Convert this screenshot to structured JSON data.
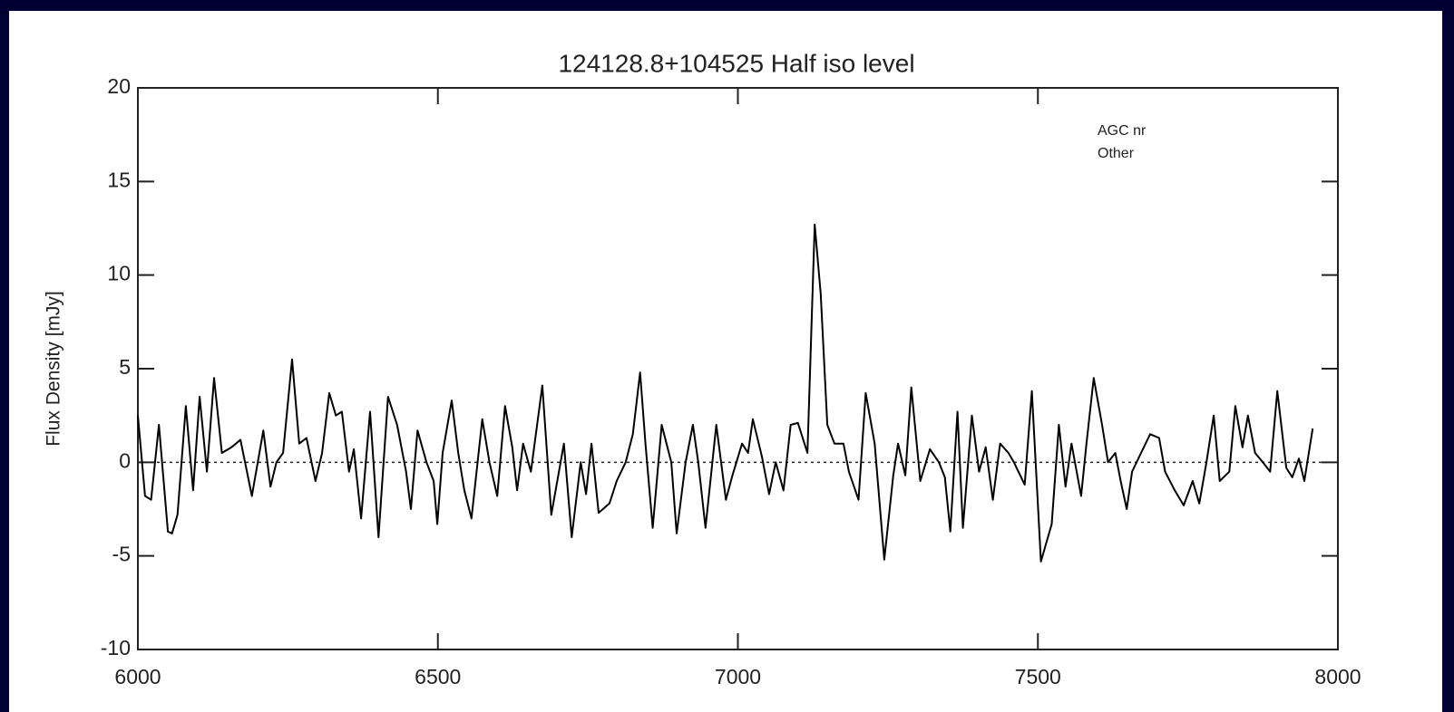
{
  "chart_data": {
    "type": "line",
    "title": "124128.8+104525    Half iso level",
    "y_label": "Flux Density [mJy]",
    "annotations": [
      "AGC nr",
      "Other"
    ],
    "color": "#000000",
    "reference_line": 0,
    "xlim": [
      6000,
      8000
    ],
    "xticks": [
      6000,
      6500,
      7000,
      7500,
      8000
    ],
    "ylim": [
      -10,
      20
    ],
    "yticks": [
      -10,
      -5,
      0,
      5,
      10,
      15,
      20
    ],
    "series": [
      {
        "name": "spectrum",
        "x": [
          6000,
          6012,
          6022,
          6035,
          6050,
          6057,
          6066,
          6080,
          6092,
          6103,
          6115,
          6127,
          6140,
          6156,
          6171,
          6190,
          6209,
          6221,
          6231,
          6242,
          6257,
          6269,
          6281,
          6296,
          6307,
          6319,
          6330,
          6340,
          6352,
          6360,
          6372,
          6387,
          6401,
          6417,
          6432,
          6447,
          6455,
          6466,
          6481,
          6493,
          6499,
          6508,
          6523,
          6534,
          6544,
          6556,
          6574,
          6586,
          6599,
          6612,
          6624,
          6632,
          6642,
          6655,
          6674,
          6689,
          6710,
          6723,
          6738,
          6747,
          6756,
          6768,
          6786,
          6798,
          6813,
          6825,
          6837,
          6846,
          6858,
          6873,
          6889,
          6898,
          6913,
          6925,
          6934,
          6946,
          6964,
          6980,
          6991,
          7007,
          7017,
          7025,
          7040,
          7052,
          7063,
          7076,
          7088,
          7100,
          7111,
          7116,
          7128,
          7138,
          7149,
          7161,
          7176,
          7185,
          7201,
          7213,
          7228,
          7244,
          7259,
          7267,
          7279,
          7289,
          7304,
          7320,
          7335,
          7345,
          7354,
          7366,
          7375,
          7390,
          7402,
          7413,
          7425,
          7437,
          7451,
          7460,
          7478,
          7490,
          7505,
          7523,
          7535,
          7546,
          7556,
          7572,
          7581,
          7593,
          7607,
          7617,
          7629,
          7638,
          7648,
          7657,
          7672,
          7687,
          7702,
          7712,
          7728,
          7743,
          7758,
          7769,
          7781,
          7793,
          7803,
          7819,
          7829,
          7841,
          7850,
          7862,
          7875,
          7887,
          7899,
          7914,
          7924,
          7935,
          7944,
          7958
        ],
        "values": [
          2.5,
          -1.8,
          -2,
          2,
          -3.7,
          -3.8,
          -2.8,
          3,
          -1.5,
          3.5,
          -0.5,
          4.5,
          0.5,
          0.8,
          1.2,
          -1.8,
          1.7,
          -1.3,
          0,
          0.5,
          5.5,
          1,
          1.3,
          -1,
          0.5,
          3.7,
          2.5,
          2.7,
          -0.5,
          0.7,
          -3,
          2.7,
          -4,
          3.5,
          2,
          -0.5,
          -2.5,
          1.7,
          0,
          -1,
          -3.3,
          0.5,
          3.3,
          0.5,
          -1.5,
          -3,
          2.3,
          0,
          -1.8,
          3,
          0.8,
          -1.5,
          1,
          -0.5,
          4.1,
          -2.8,
          1,
          -4,
          0,
          -1.7,
          1,
          -2.7,
          -2.2,
          -1,
          0,
          1.5,
          4.8,
          1,
          -3.5,
          2,
          0,
          -3.8,
          0,
          2,
          0,
          -3.5,
          2,
          -2,
          -0.7,
          1,
          0.5,
          2.3,
          0.3,
          -1.7,
          0,
          -1.5,
          2,
          2.1,
          1,
          0.5,
          12.7,
          9,
          2,
          1,
          1,
          -0.5,
          -2,
          3.7,
          1,
          -5.2,
          -0.7,
          1,
          -0.7,
          4,
          -1,
          0.7,
          0,
          -0.8,
          -3.7,
          2.7,
          -3.5,
          2.5,
          -0.5,
          0.8,
          -2,
          1,
          0.5,
          0,
          -1.2,
          3.8,
          -5.3,
          -3.3,
          2,
          -1.3,
          1,
          -1.8,
          1,
          4.5,
          2,
          0,
          0.5,
          -1,
          -2.5,
          -0.5,
          0.5,
          1.5,
          1.3,
          -0.5,
          -1.5,
          -2.3,
          -1,
          -2.2,
          0,
          2.5,
          -1,
          -0.5,
          3,
          0.8,
          2.5,
          0.5,
          0,
          -0.5,
          3.8,
          -0.3,
          -0.8,
          0.2,
          -1,
          1.8
        ]
      }
    ]
  }
}
